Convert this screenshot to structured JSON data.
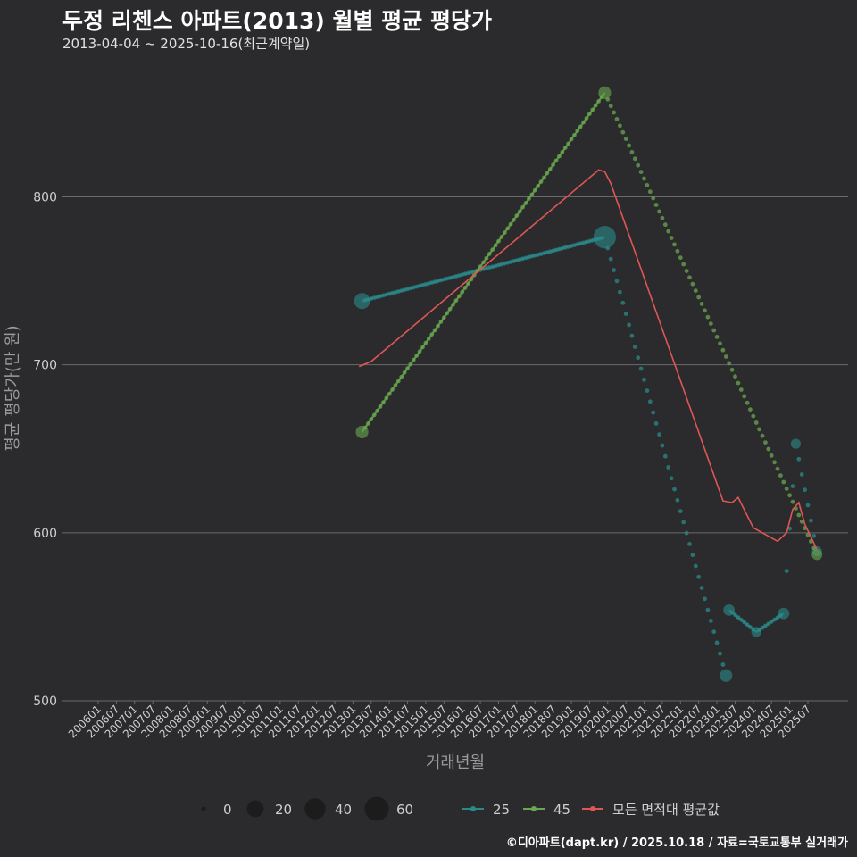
{
  "header": {
    "title": "두정 리첸스 아파트(2013) 월별 평균 평당가",
    "subtitle": "2013-04-04 ~ 2025-10-16(최근계약일)"
  },
  "caption": "©디아파트(dapt.kr) / 2025.10.18 / 자료=국토교통부 실거래가",
  "chart_data": {
    "type": "line",
    "title": "두정 리첸스 아파트(2013) 월별 평균 평당가",
    "xlabel": "거래년월",
    "ylabel": "평균 평당가(만 원)",
    "ylim": [
      500,
      880
    ],
    "y_ticks": [
      500,
      600,
      700,
      800
    ],
    "x_ticks": [
      "200601",
      "200607",
      "200701",
      "200707",
      "200801",
      "200807",
      "200901",
      "200907",
      "201001",
      "201007",
      "201101",
      "201107",
      "201201",
      "201207",
      "201301",
      "201307",
      "201401",
      "201407",
      "201501",
      "201507",
      "201601",
      "201607",
      "201701",
      "201707",
      "201801",
      "201807",
      "201901",
      "201907",
      "202001",
      "202007",
      "202101",
      "202107",
      "202201",
      "202207",
      "202301",
      "202307",
      "202401",
      "202407",
      "202501",
      "202507"
    ],
    "grid": true,
    "series": [
      {
        "name": "25",
        "color": "#2a8a8a",
        "points": [
          {
            "x": "2013-04",
            "y": 738,
            "n": 15
          },
          {
            "x": "2019-12",
            "y": 776,
            "n": 35
          },
          {
            "x": "2023-04",
            "y": 515,
            "n": 8
          },
          {
            "x": "2023-05",
            "y": 554,
            "n": 6
          },
          {
            "x": "2024-02",
            "y": 541,
            "n": 4
          },
          {
            "x": "2024-11",
            "y": 552,
            "n": 6
          },
          {
            "x": "2025-03",
            "y": 653,
            "n": 4
          },
          {
            "x": "2025-10",
            "y": 589,
            "n": 4
          }
        ]
      },
      {
        "name": "45",
        "color": "#6aa84f",
        "points": [
          {
            "x": "2013-04",
            "y": 660,
            "n": 8
          },
          {
            "x": "2019-12",
            "y": 862,
            "n": 8
          },
          {
            "x": "2025-10",
            "y": 587,
            "n": 5
          }
        ]
      },
      {
        "name": "모든 면적대 평균값",
        "color": "#e05555",
        "points": [
          {
            "x": "2013-03",
            "y": 699
          },
          {
            "x": "2013-07",
            "y": 702
          },
          {
            "x": "2019-10",
            "y": 816
          },
          {
            "x": "2019-12",
            "y": 815
          },
          {
            "x": "2020-02",
            "y": 808
          },
          {
            "x": "2023-03",
            "y": 619
          },
          {
            "x": "2023-06",
            "y": 618
          },
          {
            "x": "2023-08",
            "y": 621
          },
          {
            "x": "2024-01",
            "y": 603
          },
          {
            "x": "2024-09",
            "y": 595
          },
          {
            "x": "2024-12",
            "y": 600
          },
          {
            "x": "2025-02",
            "y": 614
          },
          {
            "x": "2025-04",
            "y": 618
          },
          {
            "x": "2025-06",
            "y": 605
          },
          {
            "x": "2025-10",
            "y": 590
          }
        ]
      }
    ],
    "size_legend": [
      0,
      20,
      40,
      60
    ]
  }
}
